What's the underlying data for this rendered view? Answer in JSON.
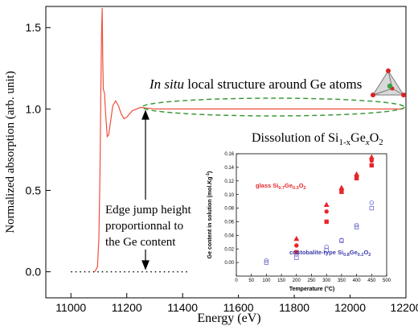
{
  "chart_data": [
    {
      "type": "line",
      "xlabel": "Energy (eV)",
      "ylabel": "Normalized absorption (arb. unit)",
      "xlim": [
        10910,
        12200
      ],
      "ylim": [
        -0.16,
        1.63
      ],
      "xticks": [
        11000,
        11200,
        11400,
        11600,
        11800,
        12000,
        12200
      ],
      "yticks": [
        {
          "value": 0,
          "label": "0.0"
        },
        0.5,
        {
          "value": 1,
          "label": "1.0"
        },
        1.5
      ],
      "series": [
        {
          "color": "#f0503c",
          "style": "solid",
          "x": [
            11085,
            11095,
            11100,
            11104,
            11107,
            11110,
            11112,
            11114,
            11116,
            11120,
            11125,
            11130,
            11135,
            11140,
            11150,
            11160,
            11170,
            11180,
            11190,
            11200,
            11220,
            11250,
            11300,
            11400,
            11600,
            11800,
            12000,
            12190
          ],
          "values": [
            0,
            0.03,
            0.2,
            0.6,
            1.1,
            1.5,
            1.62,
            1.3,
            1.12,
            1.1,
            0.95,
            0.83,
            0.84,
            0.9,
            1.02,
            1.05,
            1.02,
            0.97,
            0.94,
            0.95,
            0.99,
            1.01,
            1.0,
            1.0,
            1.0,
            1.0,
            1.0,
            1.0
          ]
        },
        {
          "color": "#000000",
          "style": "dotted",
          "x": [
            11000,
            11420
          ],
          "values": [
            0,
            0
          ]
        }
      ],
      "annotations": [
        [
          "In situ",
          " local structure around Ge atoms"
        ],
        [
          "Dissolution of Si",
          "1-x",
          "Ge",
          "x",
          "O",
          "2"
        ],
        [
          "Edge jump height",
          "proportionnal to",
          "the Ge content"
        ]
      ]
    },
    {
      "type": "scatter",
      "xlabel": "Temperature (°C)",
      "ylabel": [
        "Ge content in solution (mol.Kg",
        "-1",
        ")"
      ],
      "xlim": [
        0,
        500
      ],
      "ylim": [
        -0.02,
        0.16
      ],
      "xticks": [
        0,
        50,
        100,
        150,
        200,
        250,
        300,
        350,
        400,
        450,
        500
      ],
      "yticks": [
        {
          "value": 0,
          "label": "0.00"
        },
        {
          "value": 0.02,
          "label": "0.02"
        },
        {
          "value": 0.04,
          "label": "0.04"
        },
        {
          "value": 0.06,
          "label": "0.06"
        },
        {
          "value": 0.08,
          "label": "0.08"
        },
        {
          "value": 0.1,
          "label": "0.10"
        },
        {
          "value": 0.12,
          "label": "0.12"
        },
        {
          "value": 0.14,
          "label": "0.14"
        },
        {
          "value": 0.16,
          "label": "0.16"
        }
      ],
      "series": [
        {
          "color": "#e8262a",
          "marker": "triangle",
          "filled": true,
          "x": [
            200,
            300,
            350,
            400,
            450
          ],
          "values": [
            0.035,
            0.085,
            0.11,
            0.13,
            0.155
          ]
        },
        {
          "color": "#e8262a",
          "marker": "circle",
          "filled": true,
          "x": [
            200,
            300,
            350,
            400,
            450
          ],
          "values": [
            0.025,
            0.075,
            0.107,
            0.127,
            0.15
          ]
        },
        {
          "color": "#e8262a",
          "marker": "square",
          "filled": true,
          "x": [
            200,
            300,
            350,
            400,
            450
          ],
          "values": [
            0.015,
            0.06,
            0.104,
            0.124,
            0.143
          ]
        },
        {
          "color": "#6a6ad0",
          "marker": "circle",
          "filled": false,
          "x": [
            100,
            200,
            300,
            350,
            400,
            450
          ],
          "values": [
            0.003,
            0.012,
            0.023,
            0.033,
            0.055,
            0.088
          ]
        },
        {
          "color": "#6a6ad0",
          "marker": "square",
          "filled": false,
          "x": [
            100,
            200,
            300,
            350,
            400,
            450
          ],
          "values": [
            0,
            0.007,
            0.018,
            0.032,
            0.052,
            0.08
          ]
        }
      ],
      "annotations": [
        [
          "glass Si",
          "0.7",
          "Ge",
          "0.3",
          "O",
          "2"
        ],
        [
          "cristobalite-type Si",
          "0.8",
          "Ge",
          "0.2",
          "O",
          "2"
        ]
      ]
    }
  ]
}
